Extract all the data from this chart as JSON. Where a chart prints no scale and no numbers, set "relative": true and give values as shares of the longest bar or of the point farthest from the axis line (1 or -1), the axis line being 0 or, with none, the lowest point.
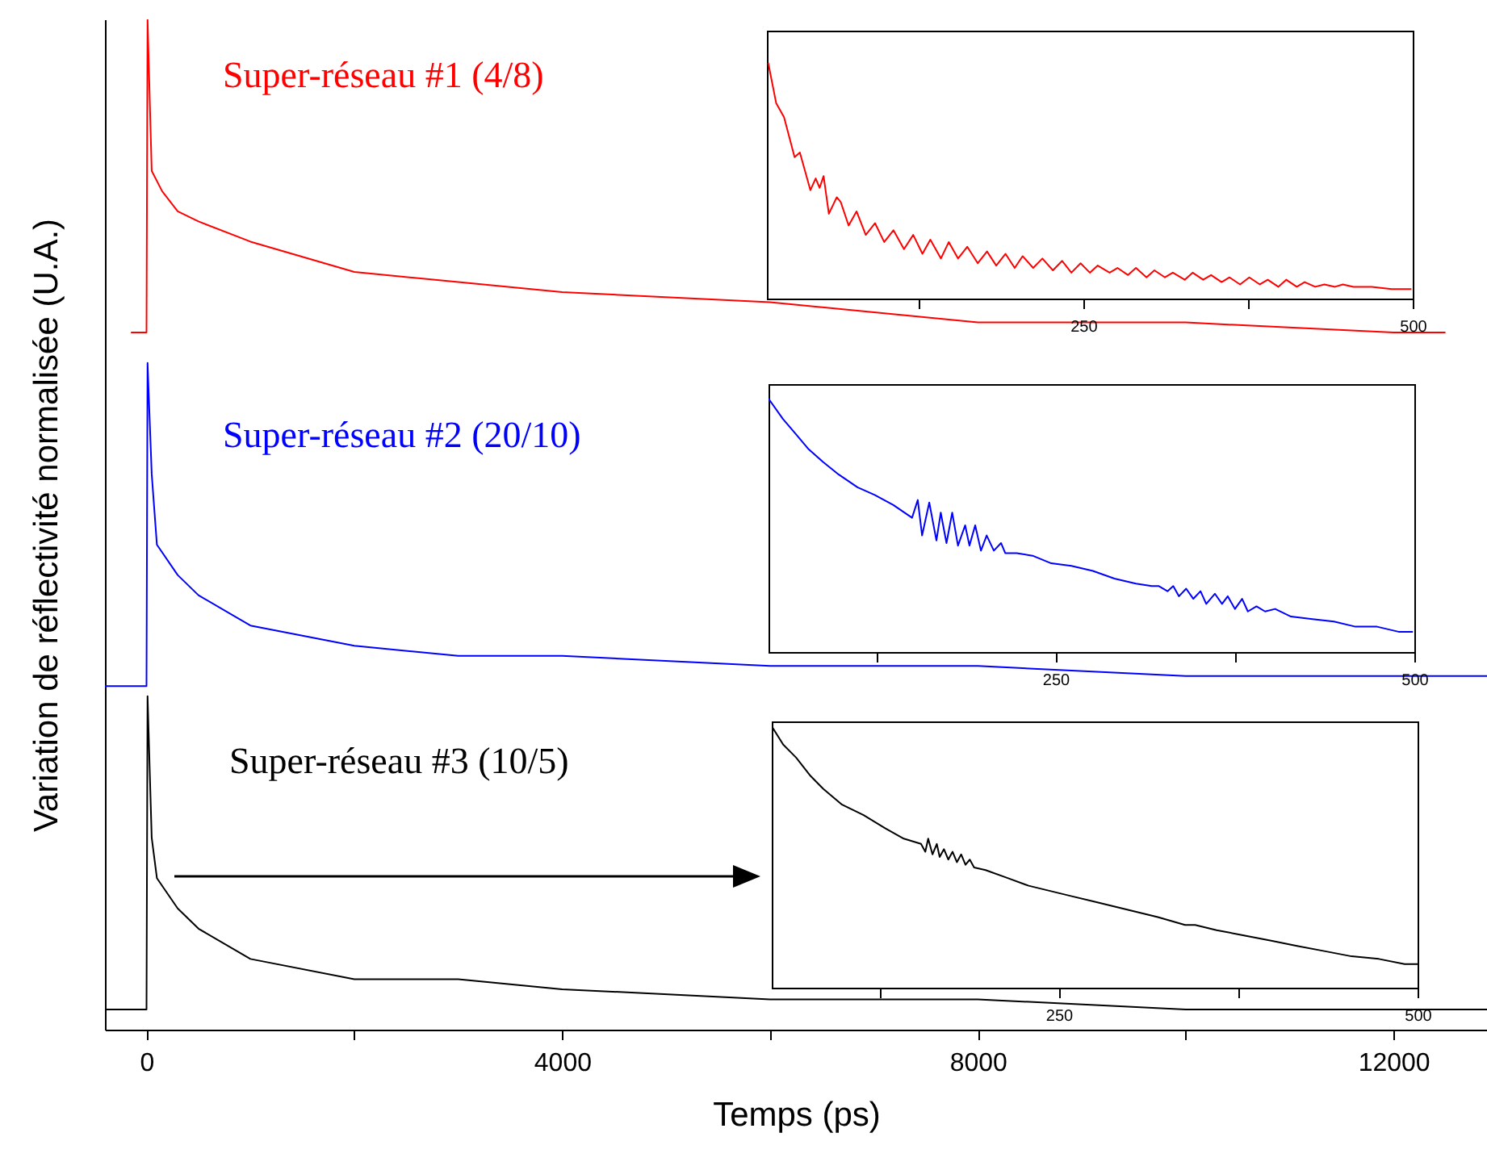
{
  "chart_data": [
    {
      "type": "line",
      "relative": true,
      "xlabel": "Temps (ps)",
      "ylabel": "Variation de réflectivité normalisée (U.A.)",
      "xlim": [
        -400,
        12900
      ],
      "xticks": [
        0,
        {
          "value": 2000,
          "label": null
        },
        4000,
        {
          "value": 6000,
          "label": null
        },
        8000,
        {
          "value": 10000,
          "label": null
        },
        12000
      ],
      "grid": false,
      "series": [
        {
          "name": "Super-réseau #1 (4/8)",
          "color": "#ff0000",
          "x": [
            -150,
            0,
            10,
            50,
            150,
            300,
            500,
            1000,
            2000,
            3000,
            4000,
            6000,
            8000,
            10000,
            12000,
            12500
          ],
          "values": [
            0.69,
            0.69,
            1.0,
            0.85,
            0.83,
            0.81,
            0.8,
            0.78,
            0.75,
            0.74,
            0.73,
            0.72,
            0.7,
            0.7,
            0.69,
            0.69
          ]
        },
        {
          "name": "Super-réseau #2 (20/10)",
          "color": "#0000ff",
          "x": [
            -400,
            0,
            10,
            50,
            100,
            300,
            500,
            1000,
            2000,
            3000,
            4000,
            6000,
            8000,
            10000,
            12900
          ],
          "values": [
            0.34,
            0.34,
            0.66,
            0.55,
            0.48,
            0.45,
            0.43,
            0.4,
            0.38,
            0.37,
            0.37,
            0.36,
            0.36,
            0.35,
            0.35
          ]
        },
        {
          "name": "Super-réseau #3 (10/5)",
          "color": "#000000",
          "x": [
            -400,
            0,
            10,
            50,
            100,
            300,
            500,
            1000,
            2000,
            3000,
            4000,
            6000,
            8000,
            10000,
            12900
          ],
          "values": [
            0.02,
            0.02,
            0.33,
            0.19,
            0.15,
            0.12,
            0.1,
            0.07,
            0.05,
            0.05,
            0.04,
            0.03,
            0.03,
            0.02,
            0.02
          ]
        }
      ]
    },
    {
      "type": "line",
      "relative": true,
      "xlim": [
        10,
        500
      ],
      "xticks": [
        {
          "value": 125,
          "label": null
        },
        250,
        {
          "value": 375,
          "label": null
        },
        500
      ],
      "grid": false,
      "x": [
        11,
        17,
        23,
        31,
        35,
        43,
        47,
        50,
        53,
        57,
        63,
        66,
        72,
        78,
        85,
        92,
        99,
        106,
        114,
        121,
        128,
        134,
        142,
        148,
        155,
        162,
        170,
        177,
        184,
        191,
        198,
        204,
        212,
        219,
        227,
        234,
        241,
        248,
        255,
        261,
        270,
        276,
        284,
        290,
        298,
        304,
        312,
        318,
        327,
        333,
        341,
        347,
        355,
        361,
        369,
        376,
        384,
        390,
        398,
        404,
        412,
        418,
        426,
        433,
        441,
        447,
        455,
        469,
        484,
        499
      ],
      "series": [
        {
          "color": "#ff0000",
          "values": [
            1.0,
            0.83,
            0.77,
            0.6,
            0.62,
            0.46,
            0.51,
            0.47,
            0.52,
            0.36,
            0.43,
            0.41,
            0.31,
            0.37,
            0.27,
            0.32,
            0.24,
            0.29,
            0.21,
            0.27,
            0.19,
            0.25,
            0.17,
            0.24,
            0.17,
            0.22,
            0.15,
            0.2,
            0.14,
            0.19,
            0.13,
            0.18,
            0.13,
            0.17,
            0.12,
            0.16,
            0.11,
            0.15,
            0.11,
            0.14,
            0.11,
            0.13,
            0.1,
            0.13,
            0.09,
            0.12,
            0.09,
            0.11,
            0.08,
            0.11,
            0.08,
            0.1,
            0.07,
            0.09,
            0.06,
            0.09,
            0.06,
            0.08,
            0.05,
            0.08,
            0.05,
            0.07,
            0.05,
            0.06,
            0.05,
            0.06,
            0.05,
            0.05,
            0.04,
            0.04
          ]
        }
      ]
    },
    {
      "type": "line",
      "relative": true,
      "xlim": [
        50,
        500
      ],
      "xticks": [
        {
          "value": 125,
          "label": null
        },
        250,
        {
          "value": 375,
          "label": null
        },
        500
      ],
      "grid": false,
      "x": [
        50,
        60,
        69,
        78,
        88,
        99,
        112,
        124,
        137,
        150,
        154,
        157,
        162,
        167,
        170,
        174,
        178,
        182,
        187,
        190,
        194,
        198,
        202,
        207,
        212,
        215,
        223,
        234,
        247,
        261,
        276,
        291,
        306,
        317,
        322,
        328,
        332,
        336,
        341,
        346,
        351,
        355,
        361,
        366,
        370,
        375,
        380,
        384,
        390,
        396,
        403,
        414,
        429,
        444,
        459,
        474,
        489,
        499
      ],
      "series": [
        {
          "color": "#0000ff",
          "values": [
            1.0,
            0.92,
            0.86,
            0.8,
            0.75,
            0.7,
            0.65,
            0.62,
            0.58,
            0.53,
            0.6,
            0.46,
            0.59,
            0.44,
            0.55,
            0.43,
            0.55,
            0.42,
            0.5,
            0.42,
            0.5,
            0.4,
            0.46,
            0.4,
            0.43,
            0.39,
            0.39,
            0.38,
            0.35,
            0.34,
            0.32,
            0.29,
            0.27,
            0.26,
            0.26,
            0.24,
            0.26,
            0.22,
            0.25,
            0.21,
            0.24,
            0.19,
            0.23,
            0.19,
            0.22,
            0.17,
            0.21,
            0.16,
            0.18,
            0.16,
            0.17,
            0.14,
            0.13,
            0.12,
            0.1,
            0.1,
            0.08,
            0.08
          ]
        }
      ]
    },
    {
      "type": "line",
      "relative": true,
      "xlim": [
        50,
        500
      ],
      "xticks": [
        {
          "value": 125,
          "label": null
        },
        250,
        {
          "value": 375,
          "label": null
        },
        500
      ],
      "grid": false,
      "x": [
        50,
        58,
        67,
        77,
        86,
        99,
        114,
        129,
        142,
        154,
        157,
        159,
        162,
        165,
        167,
        170,
        173,
        176,
        179,
        182,
        185,
        188,
        191,
        199,
        214,
        229,
        244,
        259,
        274,
        289,
        304,
        319,
        338,
        345,
        360,
        379,
        398,
        416,
        435,
        454,
        473,
        491,
        500
      ],
      "series": [
        {
          "color": "#000000",
          "values": [
            1.0,
            0.93,
            0.88,
            0.81,
            0.76,
            0.7,
            0.66,
            0.61,
            0.57,
            0.55,
            0.52,
            0.57,
            0.51,
            0.55,
            0.5,
            0.53,
            0.49,
            0.52,
            0.48,
            0.51,
            0.47,
            0.49,
            0.46,
            0.45,
            0.42,
            0.39,
            0.37,
            0.35,
            0.33,
            0.31,
            0.29,
            0.27,
            0.24,
            0.24,
            0.22,
            0.2,
            0.18,
            0.16,
            0.14,
            0.12,
            0.11,
            0.09,
            0.09
          ]
        }
      ]
    }
  ]
}
